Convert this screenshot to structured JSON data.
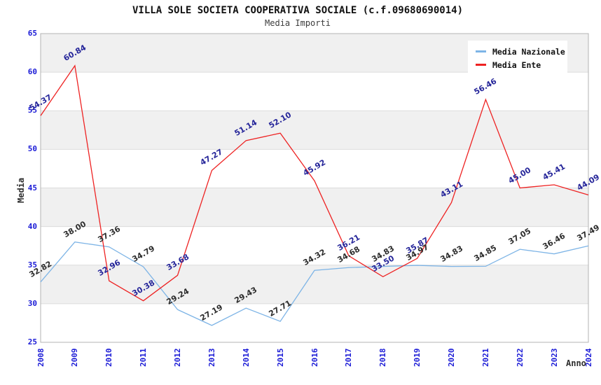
{
  "chart_data": {
    "type": "line",
    "title": "VILLA SOLE SOCIETA COOPERATIVA SOCIALE (c.f.09680690014)",
    "subtitle": "Media Importi",
    "xlabel": "Anno",
    "ylabel": "Media",
    "x": [
      "2008",
      "2009",
      "2010",
      "2011",
      "2012",
      "2013",
      "2014",
      "2015",
      "2016",
      "2017",
      "2018",
      "2019",
      "2020",
      "2021",
      "2022",
      "2023",
      "2024"
    ],
    "series": [
      {
        "name": "Media Nazionale",
        "line_color": "#7db4e6",
        "label_color": "#2d2d2d",
        "values": [
          32.82,
          38.0,
          37.36,
          34.79,
          29.24,
          27.19,
          29.43,
          27.71,
          34.32,
          34.68,
          34.83,
          34.97,
          34.83,
          34.85,
          37.05,
          36.46,
          37.49
        ]
      },
      {
        "name": "Media Ente",
        "line_color": "#ee2222",
        "label_color": "#26269a",
        "values": [
          54.37,
          60.84,
          32.96,
          30.38,
          33.68,
          47.27,
          51.14,
          52.1,
          45.92,
          36.21,
          33.5,
          35.87,
          43.11,
          56.46,
          45.0,
          45.41,
          44.09
        ]
      }
    ],
    "ylim": [
      25,
      65
    ],
    "ytick_step": 5,
    "grid": true,
    "band_fill_ranges": [
      [
        30,
        35
      ],
      [
        40,
        45
      ],
      [
        50,
        55
      ],
      [
        60,
        65
      ]
    ],
    "band_color": "#f0f0f0",
    "gridline_color": "#dcdcdc",
    "plot_border_color": "#b3b3b3",
    "tick_label_color": "#1a1ad6",
    "legend_position": "top-right"
  }
}
